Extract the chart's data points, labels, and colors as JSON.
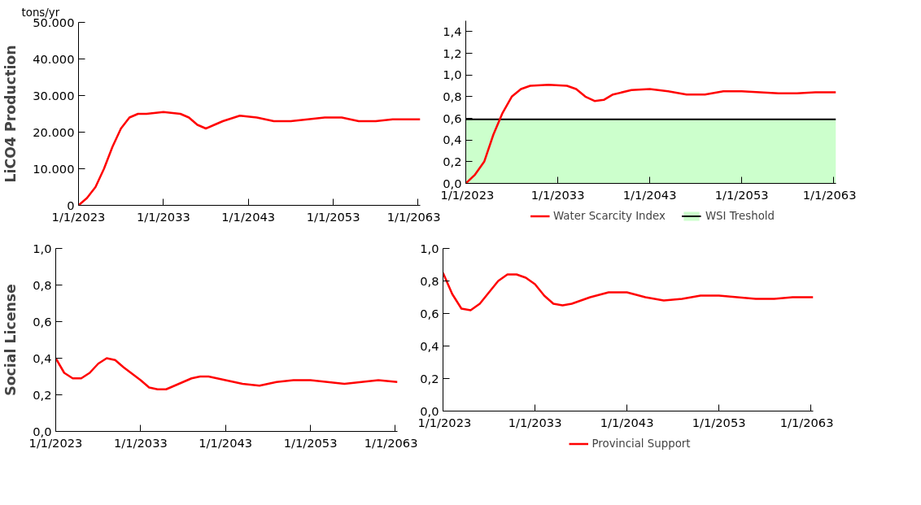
{
  "chart_data": [
    {
      "type": "line",
      "ylabel": "LiCO4 Production",
      "annotations": [
        "tons/yr"
      ],
      "x": [
        "2023-01",
        "2024-01",
        "2025-01",
        "2026-01",
        "2027-01",
        "2028-01",
        "2029-01",
        "2030-01",
        "2031-01",
        "2033-01",
        "2035-01",
        "2036-01",
        "2037-01",
        "2038-01",
        "2039-01",
        "2040-01",
        "2042-01",
        "2044-01",
        "2046-01",
        "2048-01",
        "2050-01",
        "2052-01",
        "2054-01",
        "2056-01",
        "2058-01",
        "2060-01",
        "2063-04"
      ],
      "series": [
        {
          "color": "#ff0000",
          "values": [
            0,
            2000,
            5000,
            10000,
            16000,
            21000,
            24000,
            25000,
            25000,
            25500,
            25000,
            24000,
            22000,
            21000,
            22000,
            23000,
            24500,
            24000,
            23000,
            23000,
            23500,
            24000,
            24000,
            23000,
            23000,
            23500,
            23500
          ]
        }
      ],
      "xlim": [
        "2023-01-01",
        "2063-04-01"
      ],
      "xticks": [
        {
          "value": "2023-01-01",
          "label": "1/1/2023"
        },
        {
          "value": "2033-01-01",
          "label": "1/1/2033"
        },
        {
          "value": "2043-01-01",
          "label": "1/1/2043"
        },
        {
          "value": "2053-01-01",
          "label": "1/1/2053"
        },
        {
          "value": "2063-01-01",
          "label": "1/1/2063"
        }
      ],
      "ylim": [
        0,
        50000
      ],
      "yticks": [
        0,
        {
          "value": 10000,
          "label": "10.000"
        },
        {
          "value": 20000,
          "label": "20.000"
        },
        {
          "value": 30000,
          "label": "30.000"
        },
        {
          "value": 40000,
          "label": "40.000"
        },
        {
          "value": 50000,
          "label": "50.000"
        }
      ],
      "grid": false,
      "legend": false,
      "marker": "none",
      "line_style": "solid"
    },
    {
      "type": "line",
      "x": [
        "2023-01",
        "2024-01",
        "2025-01",
        "2026-01",
        "2027-01",
        "2028-01",
        "2029-01",
        "2030-01",
        "2032-01",
        "2034-01",
        "2035-01",
        "2036-01",
        "2037-01",
        "2038-01",
        "2039-01",
        "2041-01",
        "2043-01",
        "2045-01",
        "2047-01",
        "2049-01",
        "2051-01",
        "2053-01",
        "2055-01",
        "2057-01",
        "2059-01",
        "2061-01",
        "2063-04"
      ],
      "series": [
        {
          "name": "Water Scarcity Index",
          "color": "#ff0000",
          "values": [
            0,
            0.08,
            0.2,
            0.45,
            0.65,
            0.8,
            0.87,
            0.9,
            0.91,
            0.9,
            0.87,
            0.8,
            0.76,
            0.77,
            0.82,
            0.86,
            0.87,
            0.85,
            0.82,
            0.82,
            0.85,
            0.85,
            0.84,
            0.83,
            0.83,
            0.84,
            0.84
          ]
        },
        {
          "name": "WSI Treshold",
          "type": "area",
          "color": "#ccffcc",
          "values": [
            0.59,
            0.59,
            0.59,
            0.59,
            0.59,
            0.59,
            0.59,
            0.59,
            0.59,
            0.59,
            0.59,
            0.59,
            0.59,
            0.59,
            0.59,
            0.59,
            0.59,
            0.59,
            0.59,
            0.59,
            0.59,
            0.59,
            0.59,
            0.59,
            0.59,
            0.59,
            0.59
          ]
        }
      ],
      "xlim": [
        "2023-01-01",
        "2063-04-01"
      ],
      "xticks": [
        {
          "value": "2023-01-01",
          "label": "1/1/2023"
        },
        {
          "value": "2033-01-01",
          "label": "1/1/2033"
        },
        {
          "value": "2043-01-01",
          "label": "1/1/2043"
        },
        {
          "value": "2053-01-01",
          "label": "1/1/2053"
        },
        {
          "value": "2063-01-01",
          "label": "1/1/2063"
        }
      ],
      "ylim": [
        0,
        1.5
      ],
      "yticks": [
        {
          "value": 0,
          "label": "0,0"
        },
        {
          "value": 0.2,
          "label": "0,2"
        },
        {
          "value": 0.4,
          "label": "0,4"
        },
        {
          "value": 0.6,
          "label": "0,6"
        },
        {
          "value": 0.8,
          "label": "0,8"
        },
        {
          "value": 1.0,
          "label": "1,0"
        },
        {
          "value": 1.2,
          "label": "1,2"
        },
        {
          "value": 1.4,
          "label": "1,4"
        }
      ],
      "grid": false,
      "legend": "bottom",
      "marker": "none",
      "line_style": "solid"
    },
    {
      "type": "line",
      "ylabel": "Social License",
      "x": [
        "2023-01",
        "2024-01",
        "2025-01",
        "2026-01",
        "2027-01",
        "2028-01",
        "2029-01",
        "2030-01",
        "2031-01",
        "2033-01",
        "2034-01",
        "2035-01",
        "2036-01",
        "2037-01",
        "2039-01",
        "2040-01",
        "2041-01",
        "2043-01",
        "2045-01",
        "2047-01",
        "2049-01",
        "2051-01",
        "2053-01",
        "2055-01",
        "2057-01",
        "2059-01",
        "2061-01",
        "2063-04"
      ],
      "series": [
        {
          "color": "#ff0000",
          "values": [
            0.4,
            0.32,
            0.29,
            0.29,
            0.32,
            0.37,
            0.4,
            0.39,
            0.35,
            0.28,
            0.24,
            0.23,
            0.23,
            0.25,
            0.29,
            0.3,
            0.3,
            0.28,
            0.26,
            0.25,
            0.27,
            0.28,
            0.28,
            0.27,
            0.26,
            0.27,
            0.28,
            0.27
          ]
        }
      ],
      "xlim": [
        "2023-01-01",
        "2063-04-01"
      ],
      "xticks": [
        {
          "value": "2023-01-01",
          "label": "1/1/2023"
        },
        {
          "value": "2033-01-01",
          "label": "1/1/2033"
        },
        {
          "value": "2043-01-01",
          "label": "1/1/2043"
        },
        {
          "value": "2053-01-01",
          "label": "1/1/2053"
        },
        {
          "value": "2063-01-01",
          "label": "1/1/2063"
        }
      ],
      "ylim": [
        0,
        1.0
      ],
      "yticks": [
        {
          "value": 0,
          "label": "0,0"
        },
        {
          "value": 0.2,
          "label": "0,2"
        },
        {
          "value": 0.4,
          "label": "0,4"
        },
        {
          "value": 0.6,
          "label": "0,6"
        },
        {
          "value": 0.8,
          "label": "0,8"
        },
        {
          "value": 1.0,
          "label": "1,0"
        }
      ],
      "grid": false,
      "legend": false,
      "marker": "none",
      "line_style": "solid"
    },
    {
      "type": "line",
      "x": [
        "2023-01",
        "2024-01",
        "2025-01",
        "2026-01",
        "2027-01",
        "2028-01",
        "2029-01",
        "2030-01",
        "2031-01",
        "2032-01",
        "2033-01",
        "2034-01",
        "2035-01",
        "2036-01",
        "2037-01",
        "2039-01",
        "2041-01",
        "2043-01",
        "2045-01",
        "2047-01",
        "2049-01",
        "2051-01",
        "2053-01",
        "2055-01",
        "2057-01",
        "2059-01",
        "2061-01",
        "2063-04"
      ],
      "series": [
        {
          "name": "Provincial Support",
          "color": "#ff0000",
          "values": [
            0.85,
            0.72,
            0.63,
            0.62,
            0.66,
            0.73,
            0.8,
            0.84,
            0.84,
            0.82,
            0.78,
            0.71,
            0.66,
            0.65,
            0.66,
            0.7,
            0.73,
            0.73,
            0.7,
            0.68,
            0.69,
            0.71,
            0.71,
            0.7,
            0.69,
            0.69,
            0.7,
            0.7
          ]
        }
      ],
      "xlim": [
        "2023-01-01",
        "2063-04-01"
      ],
      "xticks": [
        {
          "value": "2023-01-01",
          "label": "1/1/2023"
        },
        {
          "value": "2033-01-01",
          "label": "1/1/2033"
        },
        {
          "value": "2043-01-01",
          "label": "1/1/2043"
        },
        {
          "value": "2053-01-01",
          "label": "1/1/2053"
        },
        {
          "value": "2063-01-01",
          "label": "1/1/2063"
        }
      ],
      "ylim": [
        0,
        1.0
      ],
      "yticks": [
        {
          "value": 0,
          "label": "0,0"
        },
        {
          "value": 0.2,
          "label": "0,2"
        },
        {
          "value": 0.4,
          "label": "0,4"
        },
        {
          "value": 0.6,
          "label": "0,6"
        },
        {
          "value": 0.8,
          "label": "0,8"
        },
        {
          "value": 1.0,
          "label": "1,0"
        }
      ],
      "grid": false,
      "legend": "bottom",
      "marker": "none",
      "line_style": "solid"
    }
  ]
}
